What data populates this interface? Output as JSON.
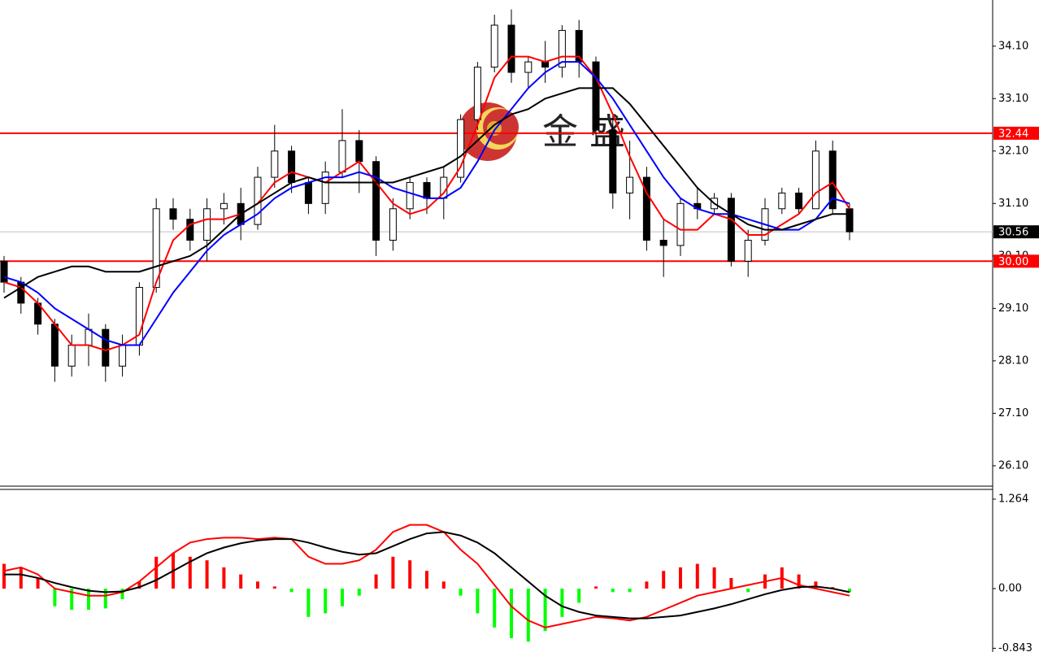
{
  "chart_data": [
    {
      "type": "candlestick",
      "open": [
        30.0,
        29.6,
        29.2,
        28.8,
        28.0,
        28.4,
        28.7,
        28.0,
        28.4,
        29.5,
        31.0,
        30.8,
        30.4,
        31.0,
        31.1,
        30.7,
        31.6,
        32.1,
        31.5,
        31.1,
        31.7,
        32.3,
        31.9,
        30.4,
        31.0,
        31.5,
        31.2,
        31.6,
        32.7,
        33.7,
        34.5,
        33.6,
        33.8,
        33.7,
        34.4,
        33.8,
        32.5,
        31.3,
        31.6,
        30.4,
        30.3,
        31.1,
        31.0,
        31.2,
        30.0,
        30.4,
        31.0,
        31.3,
        31.0,
        32.1,
        31.0
      ],
      "high": [
        30.1,
        29.7,
        29.3,
        28.9,
        28.6,
        29.0,
        28.8,
        28.6,
        29.6,
        31.2,
        31.2,
        31.0,
        31.2,
        31.3,
        31.4,
        31.8,
        32.6,
        32.2,
        31.6,
        31.9,
        32.9,
        32.5,
        32.0,
        31.2,
        31.6,
        31.6,
        31.8,
        32.8,
        33.8,
        34.7,
        34.8,
        33.9,
        34.2,
        34.5,
        34.6,
        33.9,
        32.8,
        32.3,
        31.8,
        30.8,
        31.2,
        31.4,
        31.3,
        31.3,
        30.6,
        31.2,
        31.4,
        31.4,
        32.3,
        32.3,
        31.1
      ],
      "low": [
        29.4,
        29.0,
        28.6,
        27.7,
        27.8,
        28.0,
        27.7,
        27.8,
        28.2,
        29.4,
        30.6,
        30.2,
        30.0,
        30.7,
        30.4,
        30.6,
        31.4,
        31.3,
        30.9,
        30.9,
        31.6,
        31.3,
        30.1,
        30.2,
        30.8,
        30.9,
        30.8,
        31.5,
        32.5,
        33.6,
        33.4,
        33.3,
        33.4,
        33.5,
        33.5,
        32.2,
        31.0,
        30.8,
        30.2,
        29.7,
        30.1,
        30.8,
        30.9,
        29.9,
        29.7,
        30.3,
        30.9,
        30.9,
        31.0,
        30.9,
        30.4
      ],
      "close": [
        29.6,
        29.2,
        28.8,
        28.0,
        28.4,
        28.7,
        28.0,
        28.4,
        29.5,
        31.0,
        30.8,
        30.4,
        31.0,
        31.1,
        30.7,
        31.6,
        32.1,
        31.5,
        31.1,
        31.7,
        32.3,
        31.9,
        30.4,
        31.0,
        31.5,
        31.2,
        31.6,
        32.7,
        33.7,
        34.5,
        33.6,
        33.8,
        33.7,
        34.4,
        33.8,
        32.5,
        31.3,
        31.6,
        30.4,
        30.3,
        31.1,
        31.0,
        31.2,
        30.0,
        30.4,
        31.0,
        31.3,
        31.0,
        32.1,
        31.0,
        30.56
      ],
      "up_color": "#ffffff",
      "down_color": "#000000",
      "series": [
        {
          "color": "#ff0000",
          "values": [
            29.6,
            29.5,
            29.2,
            28.8,
            28.4,
            28.4,
            28.3,
            28.4,
            28.6,
            29.6,
            30.4,
            30.7,
            30.8,
            30.8,
            30.9,
            31.1,
            31.5,
            31.7,
            31.6,
            31.5,
            31.7,
            31.9,
            31.5,
            31.1,
            30.9,
            31.0,
            31.3,
            31.8,
            32.6,
            33.5,
            33.9,
            33.9,
            33.8,
            33.9,
            33.9,
            33.5,
            32.8,
            32.0,
            31.3,
            30.8,
            30.6,
            30.6,
            30.9,
            30.8,
            30.5,
            30.5,
            30.7,
            30.9,
            31.3,
            31.5,
            31.0
          ]
        },
        {
          "color": "#0000ff",
          "values": [
            29.7,
            29.6,
            29.4,
            29.1,
            28.9,
            28.7,
            28.5,
            28.4,
            28.4,
            28.9,
            29.4,
            29.8,
            30.2,
            30.5,
            30.7,
            30.9,
            31.2,
            31.4,
            31.5,
            31.6,
            31.6,
            31.7,
            31.6,
            31.4,
            31.3,
            31.2,
            31.2,
            31.4,
            31.9,
            32.5,
            32.9,
            33.3,
            33.6,
            33.8,
            33.8,
            33.5,
            33.1,
            32.6,
            32.1,
            31.6,
            31.2,
            31.0,
            30.9,
            30.9,
            30.8,
            30.7,
            30.6,
            30.6,
            30.8,
            31.2,
            31.1
          ]
        },
        {
          "color": "#000000",
          "values": [
            29.3,
            29.5,
            29.7,
            29.8,
            29.9,
            29.9,
            29.8,
            29.8,
            29.8,
            29.9,
            30.0,
            30.1,
            30.3,
            30.6,
            30.9,
            31.1,
            31.3,
            31.5,
            31.6,
            31.5,
            31.5,
            31.5,
            31.5,
            31.5,
            31.6,
            31.7,
            31.8,
            32.0,
            32.3,
            32.6,
            32.8,
            32.9,
            33.1,
            33.2,
            33.3,
            33.3,
            33.3,
            33.0,
            32.6,
            32.2,
            31.8,
            31.4,
            31.1,
            30.9,
            30.7,
            30.6,
            30.6,
            30.7,
            30.8,
            30.9,
            30.9
          ]
        }
      ],
      "levels": [
        {
          "value": 32.44,
          "color": "#ff0000"
        },
        {
          "value": 30,
          "label": "30.00",
          "color": "#ff0000"
        },
        {
          "value": 30.56,
          "color": "#000000",
          "line_color": "#c0c0c0"
        }
      ],
      "watermark": "金 盛",
      "ylim": [
        25.68,
        34.98
      ],
      "yticks": [
        {
          "value": 26.1,
          "label": "26.10"
        },
        {
          "value": 27.1,
          "label": "27.10"
        },
        {
          "value": 28.1,
          "label": "28.10"
        },
        {
          "value": 29.1,
          "label": "29.10"
        },
        {
          "value": 30.1,
          "label": "30.10"
        },
        {
          "value": 31.1,
          "label": "31.10"
        },
        {
          "value": 32.1,
          "label": "32.10"
        },
        {
          "value": 33.1,
          "label": "33.10"
        },
        {
          "value": 34.1,
          "label": "34.10"
        }
      ]
    },
    {
      "type": "macd",
      "values": [
        0.35,
        0.3,
        0.15,
        -0.25,
        -0.3,
        -0.3,
        -0.28,
        -0.15,
        0.1,
        0.45,
        0.5,
        0.45,
        0.4,
        0.3,
        0.2,
        0.1,
        0.03,
        -0.05,
        -0.4,
        -0.35,
        -0.25,
        -0.1,
        0.2,
        0.45,
        0.4,
        0.25,
        0.1,
        -0.1,
        -0.35,
        -0.55,
        -0.7,
        -0.75,
        -0.6,
        -0.4,
        -0.2,
        0.03,
        -0.05,
        -0.05,
        0.1,
        0.25,
        0.3,
        0.35,
        0.3,
        0.15,
        -0.05,
        0.2,
        0.3,
        0.2,
        0.1,
        0.02,
        -0.05
      ],
      "up_color": "#ff0000",
      "down_color": "#00ff00",
      "series": [
        {
          "color": "#ff0000",
          "values": [
            0.25,
            0.3,
            0.2,
            0.0,
            -0.05,
            -0.1,
            -0.1,
            -0.05,
            0.1,
            0.3,
            0.5,
            0.65,
            0.7,
            0.72,
            0.72,
            0.7,
            0.72,
            0.7,
            0.45,
            0.35,
            0.35,
            0.4,
            0.55,
            0.8,
            0.9,
            0.9,
            0.8,
            0.55,
            0.35,
            0.05,
            -0.25,
            -0.45,
            -0.55,
            -0.5,
            -0.45,
            -0.4,
            -0.42,
            -0.45,
            -0.4,
            -0.3,
            -0.2,
            -0.1,
            -0.05,
            0.0,
            0.05,
            0.1,
            0.15,
            0.05,
            0.0,
            -0.05,
            -0.1
          ]
        },
        {
          "color": "#000000",
          "values": [
            0.2,
            0.2,
            0.15,
            0.08,
            0.02,
            -0.03,
            -0.05,
            -0.04,
            0.02,
            0.12,
            0.25,
            0.38,
            0.5,
            0.58,
            0.64,
            0.68,
            0.7,
            0.7,
            0.65,
            0.58,
            0.52,
            0.48,
            0.5,
            0.6,
            0.7,
            0.78,
            0.8,
            0.75,
            0.65,
            0.5,
            0.3,
            0.1,
            -0.1,
            -0.25,
            -0.33,
            -0.38,
            -0.4,
            -0.42,
            -0.42,
            -0.4,
            -0.38,
            -0.33,
            -0.28,
            -0.22,
            -0.15,
            -0.08,
            -0.02,
            0.02,
            0.03,
            0.0,
            -0.05
          ]
        }
      ],
      "ylim": [
        -0.873,
        1.39
      ],
      "yticks": [
        1.264,
        {
          "value": 0,
          "label": "0.00"
        },
        -0.843
      ]
    }
  ]
}
